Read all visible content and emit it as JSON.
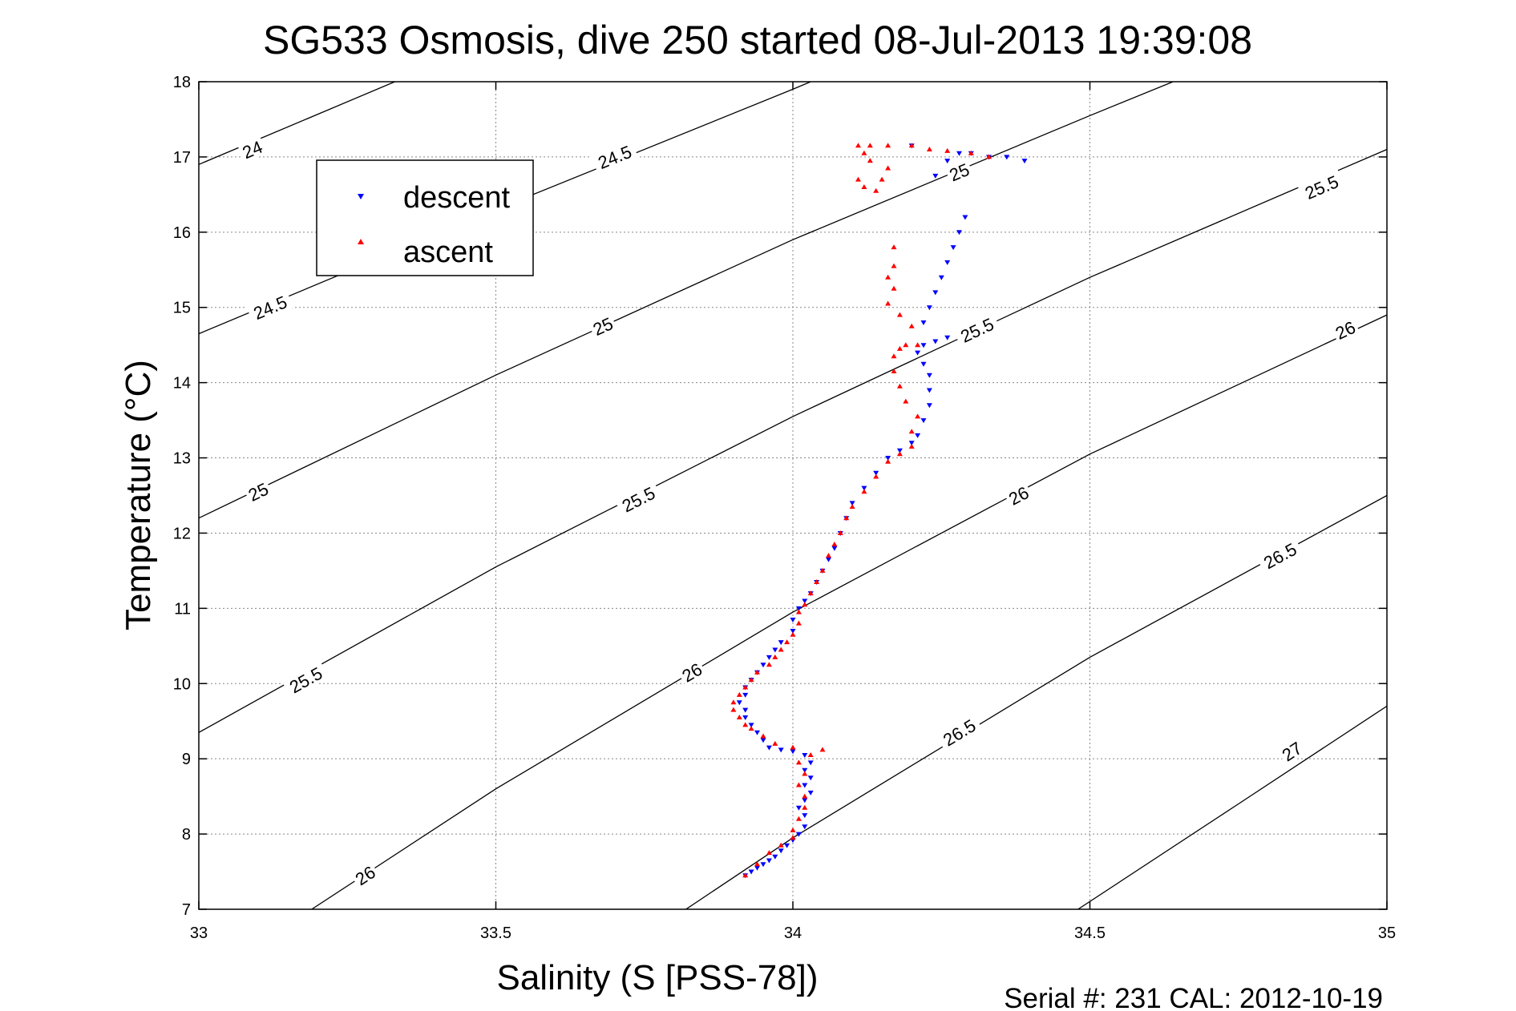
{
  "chart_data": {
    "type": "scatter",
    "title": "SG533 Osmosis, dive 250 started 08-Jul-2013 19:39:08",
    "xlabel": "Salinity (S [PSS-78])",
    "ylabel": "Temperature (°C)",
    "xlim": [
      33,
      35
    ],
    "ylim": [
      7,
      18
    ],
    "x_ticks": [
      "33",
      "33.5",
      "34",
      "34.5",
      "35"
    ],
    "y_ticks": [
      "7",
      "8",
      "9",
      "10",
      "11",
      "12",
      "13",
      "14",
      "15",
      "16",
      "17",
      "18"
    ],
    "grid": true,
    "legend_position": "top-left",
    "footer": "Serial #: 231  CAL: 2012-10-19",
    "colors": {
      "descent": "#0000ff",
      "ascent": "#ff0000",
      "contour": "#000000"
    },
    "contours": [
      {
        "sigma": 24.0,
        "points": [
          [
            33.0,
            16.9
          ],
          [
            33.33,
            18.0
          ]
        ],
        "labels": [
          {
            "text": "24",
            "x": 33.09,
            "y": 17.1
          }
        ]
      },
      {
        "sigma": 24.5,
        "points": [
          [
            33.0,
            14.65
          ],
          [
            33.5,
            16.3
          ],
          [
            34.0,
            17.9
          ],
          [
            34.03,
            18.0
          ]
        ],
        "labels": [
          {
            "text": "24.5",
            "x": 33.12,
            "y": 15.0
          },
          {
            "text": "24.5",
            "x": 33.7,
            "y": 17.0
          }
        ]
      },
      {
        "sigma": 25.0,
        "points": [
          [
            33.0,
            12.2
          ],
          [
            33.5,
            14.1
          ],
          [
            34.0,
            15.9
          ],
          [
            34.5,
            17.55
          ],
          [
            34.64,
            18.0
          ]
        ],
        "labels": [
          {
            "text": "25",
            "x": 33.1,
            "y": 12.55
          },
          {
            "text": "25",
            "x": 33.68,
            "y": 14.75
          },
          {
            "text": "25",
            "x": 34.28,
            "y": 16.8
          }
        ]
      },
      {
        "sigma": 25.5,
        "points": [
          [
            33.0,
            9.35
          ],
          [
            33.5,
            11.55
          ],
          [
            34.0,
            13.55
          ],
          [
            34.5,
            15.4
          ],
          [
            35.0,
            17.1
          ]
        ],
        "labels": [
          {
            "text": "25.5",
            "x": 33.18,
            "y": 10.05
          },
          {
            "text": "25.5",
            "x": 33.74,
            "y": 12.45
          },
          {
            "text": "25.5",
            "x": 34.31,
            "y": 14.7
          },
          {
            "text": "25.5",
            "x": 34.89,
            "y": 16.6
          }
        ]
      },
      {
        "sigma": 26.0,
        "points": [
          [
            33.19,
            7.0
          ],
          [
            33.5,
            8.6
          ],
          [
            34.0,
            10.95
          ],
          [
            34.5,
            13.05
          ],
          [
            35.0,
            14.9
          ]
        ],
        "labels": [
          {
            "text": "26",
            "x": 33.28,
            "y": 7.45
          },
          {
            "text": "26",
            "x": 33.83,
            "y": 10.15
          },
          {
            "text": "26",
            "x": 34.38,
            "y": 12.5
          },
          {
            "text": "26",
            "x": 34.93,
            "y": 14.7
          }
        ]
      },
      {
        "sigma": 26.5,
        "points": [
          [
            33.82,
            7.0
          ],
          [
            34.0,
            7.95
          ],
          [
            34.5,
            10.35
          ],
          [
            35.0,
            12.5
          ]
        ],
        "labels": [
          {
            "text": "26.5",
            "x": 34.28,
            "y": 9.35
          },
          {
            "text": "26.5",
            "x": 34.82,
            "y": 11.7
          }
        ]
      },
      {
        "sigma": 27.0,
        "points": [
          [
            34.48,
            7.0
          ],
          [
            34.75,
            8.4
          ],
          [
            35.0,
            9.7
          ]
        ],
        "labels": [
          {
            "text": "27",
            "x": 34.84,
            "y": 9.1
          }
        ]
      }
    ],
    "series": [
      {
        "name": "descent",
        "marker": "triangle-down",
        "points": [
          [
            33.92,
            7.45
          ],
          [
            33.93,
            7.5
          ],
          [
            33.94,
            7.55
          ],
          [
            33.95,
            7.6
          ],
          [
            33.96,
            7.65
          ],
          [
            33.97,
            7.7
          ],
          [
            33.98,
            7.78
          ],
          [
            33.99,
            7.85
          ],
          [
            34.0,
            7.92
          ],
          [
            34.01,
            8.0
          ],
          [
            34.02,
            8.1
          ],
          [
            34.02,
            8.25
          ],
          [
            34.01,
            8.35
          ],
          [
            34.02,
            8.45
          ],
          [
            34.03,
            8.55
          ],
          [
            34.02,
            8.65
          ],
          [
            34.03,
            8.75
          ],
          [
            34.02,
            8.85
          ],
          [
            34.03,
            8.95
          ],
          [
            34.02,
            9.05
          ],
          [
            34.0,
            9.1
          ],
          [
            33.98,
            9.12
          ],
          [
            33.96,
            9.15
          ],
          [
            33.95,
            9.25
          ],
          [
            33.94,
            9.35
          ],
          [
            33.93,
            9.45
          ],
          [
            33.92,
            9.55
          ],
          [
            33.92,
            9.65
          ],
          [
            33.91,
            9.75
          ],
          [
            33.92,
            9.85
          ],
          [
            33.92,
            9.95
          ],
          [
            33.93,
            10.05
          ],
          [
            33.94,
            10.15
          ],
          [
            33.95,
            10.25
          ],
          [
            33.96,
            10.35
          ],
          [
            33.97,
            10.45
          ],
          [
            33.98,
            10.55
          ],
          [
            34.0,
            10.7
          ],
          [
            34.0,
            10.85
          ],
          [
            34.01,
            11.0
          ],
          [
            34.02,
            11.1
          ],
          [
            34.03,
            11.2
          ],
          [
            34.04,
            11.35
          ],
          [
            34.05,
            11.5
          ],
          [
            34.06,
            11.65
          ],
          [
            34.07,
            11.8
          ],
          [
            34.08,
            12.0
          ],
          [
            34.09,
            12.2
          ],
          [
            34.1,
            12.4
          ],
          [
            34.12,
            12.6
          ],
          [
            34.14,
            12.8
          ],
          [
            34.16,
            13.0
          ],
          [
            34.18,
            13.1
          ],
          [
            34.2,
            13.2
          ],
          [
            34.21,
            13.3
          ],
          [
            34.22,
            13.5
          ],
          [
            34.23,
            13.7
          ],
          [
            34.23,
            13.9
          ],
          [
            34.23,
            14.1
          ],
          [
            34.22,
            14.25
          ],
          [
            34.21,
            14.4
          ],
          [
            34.22,
            14.5
          ],
          [
            34.24,
            14.55
          ],
          [
            34.26,
            14.6
          ],
          [
            34.22,
            14.8
          ],
          [
            34.23,
            15.0
          ],
          [
            34.24,
            15.2
          ],
          [
            34.25,
            15.4
          ],
          [
            34.26,
            15.6
          ],
          [
            34.27,
            15.8
          ],
          [
            34.28,
            16.0
          ],
          [
            34.29,
            16.2
          ],
          [
            34.24,
            16.75
          ],
          [
            34.26,
            16.95
          ],
          [
            34.28,
            17.05
          ],
          [
            34.3,
            17.05
          ],
          [
            34.33,
            17.0
          ],
          [
            34.36,
            17.0
          ],
          [
            34.39,
            16.95
          ],
          [
            34.2,
            17.15
          ]
        ]
      },
      {
        "name": "ascent",
        "marker": "triangle-up",
        "points": [
          [
            33.92,
            7.45
          ],
          [
            33.94,
            7.6
          ],
          [
            33.96,
            7.75
          ],
          [
            33.98,
            7.85
          ],
          [
            34.0,
            7.95
          ],
          [
            34.0,
            8.05
          ],
          [
            34.01,
            8.2
          ],
          [
            34.02,
            8.35
          ],
          [
            34.02,
            8.5
          ],
          [
            34.01,
            8.65
          ],
          [
            34.02,
            8.8
          ],
          [
            34.01,
            8.95
          ],
          [
            34.03,
            9.05
          ],
          [
            34.05,
            9.12
          ],
          [
            34.0,
            9.15
          ],
          [
            33.97,
            9.2
          ],
          [
            33.95,
            9.3
          ],
          [
            33.93,
            9.4
          ],
          [
            33.92,
            9.45
          ],
          [
            33.91,
            9.55
          ],
          [
            33.9,
            9.65
          ],
          [
            33.9,
            9.75
          ],
          [
            33.91,
            9.85
          ],
          [
            33.92,
            9.95
          ],
          [
            33.93,
            10.05
          ],
          [
            33.94,
            10.15
          ],
          [
            33.96,
            10.25
          ],
          [
            33.97,
            10.35
          ],
          [
            33.98,
            10.45
          ],
          [
            33.99,
            10.55
          ],
          [
            34.0,
            10.65
          ],
          [
            34.01,
            10.8
          ],
          [
            34.01,
            10.95
          ],
          [
            34.02,
            11.05
          ],
          [
            34.03,
            11.2
          ],
          [
            34.04,
            11.35
          ],
          [
            34.05,
            11.5
          ],
          [
            34.06,
            11.7
          ],
          [
            34.07,
            11.85
          ],
          [
            34.08,
            12.0
          ],
          [
            34.09,
            12.2
          ],
          [
            34.1,
            12.35
          ],
          [
            34.12,
            12.55
          ],
          [
            34.14,
            12.75
          ],
          [
            34.16,
            12.95
          ],
          [
            34.18,
            13.05
          ],
          [
            34.2,
            13.15
          ],
          [
            34.2,
            13.35
          ],
          [
            34.21,
            13.55
          ],
          [
            34.19,
            13.75
          ],
          [
            34.18,
            13.95
          ],
          [
            34.17,
            14.15
          ],
          [
            34.17,
            14.35
          ],
          [
            34.19,
            14.5
          ],
          [
            34.21,
            14.5
          ],
          [
            34.2,
            14.75
          ],
          [
            34.18,
            14.9
          ],
          [
            34.16,
            15.05
          ],
          [
            34.17,
            15.25
          ],
          [
            34.16,
            15.4
          ],
          [
            34.17,
            15.55
          ],
          [
            34.17,
            15.8
          ],
          [
            34.14,
            16.55
          ],
          [
            34.15,
            16.7
          ],
          [
            34.16,
            16.85
          ],
          [
            34.13,
            16.95
          ],
          [
            34.12,
            17.05
          ],
          [
            34.11,
            17.15
          ],
          [
            34.13,
            17.15
          ],
          [
            34.16,
            17.15
          ],
          [
            34.2,
            17.15
          ],
          [
            34.23,
            17.1
          ],
          [
            34.26,
            17.08
          ],
          [
            34.3,
            17.05
          ],
          [
            34.33,
            17.0
          ],
          [
            34.12,
            16.6
          ],
          [
            34.11,
            16.7
          ],
          [
            34.18,
            14.45
          ]
        ]
      }
    ]
  }
}
